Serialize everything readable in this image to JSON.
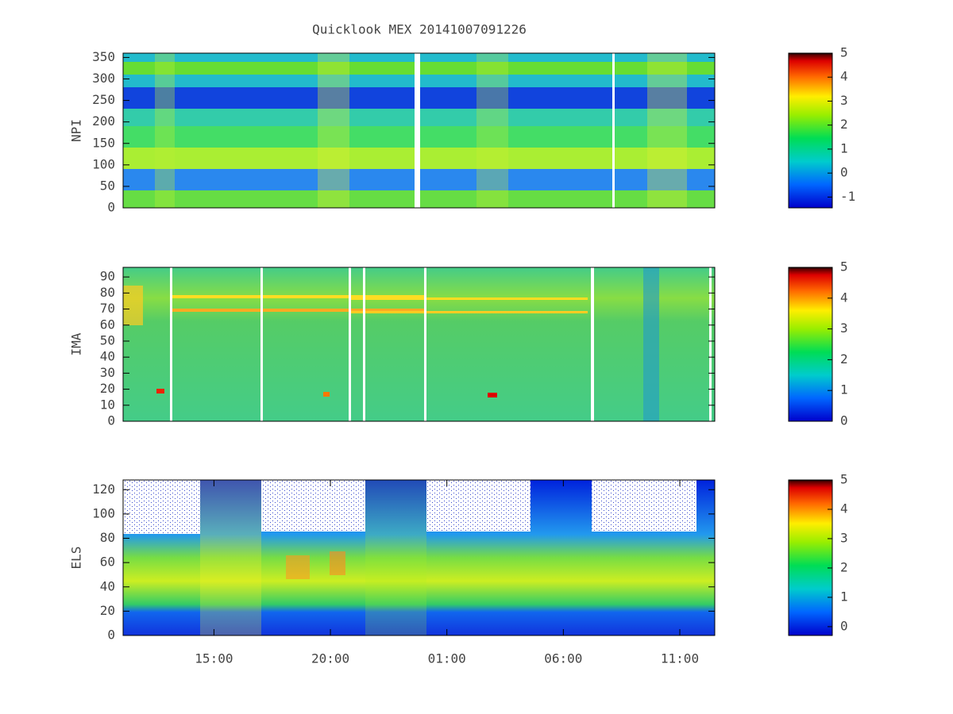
{
  "chart_data": [
    {
      "type": "heatmap",
      "title": "Quicklook MEX 20141007091226",
      "ylabel": "NPI",
      "ylim": [
        0,
        360
      ],
      "yticks": [
        0,
        50,
        100,
        150,
        200,
        250,
        300,
        350
      ],
      "clim": [
        -1.45,
        5
      ],
      "cticks": [
        -1,
        0,
        1,
        2,
        3,
        4,
        5
      ]
    },
    {
      "type": "heatmap",
      "ylabel": "IMA",
      "ylim": [
        0,
        96
      ],
      "yticks": [
        0,
        10,
        20,
        30,
        40,
        50,
        60,
        70,
        80,
        90
      ],
      "clim": [
        0,
        5
      ],
      "cticks": [
        0,
        1,
        2,
        3,
        4,
        5
      ]
    },
    {
      "type": "heatmap",
      "ylabel": "ELS",
      "ylim": [
        0,
        128
      ],
      "yticks": [
        0,
        20,
        40,
        60,
        80,
        100,
        120
      ],
      "clim": [
        -0.3,
        5
      ],
      "cticks": [
        0,
        1,
        2,
        3,
        4,
        5
      ],
      "xlim": [
        11.1,
        36.5
      ],
      "xticks": [
        {
          "value": 15,
          "label": "15:00"
        },
        {
          "value": 20,
          "label": "20:00"
        },
        {
          "value": 25,
          "label": "01:00"
        },
        {
          "value": 30,
          "label": "06:00"
        },
        {
          "value": 35,
          "label": "11:00"
        }
      ]
    }
  ]
}
